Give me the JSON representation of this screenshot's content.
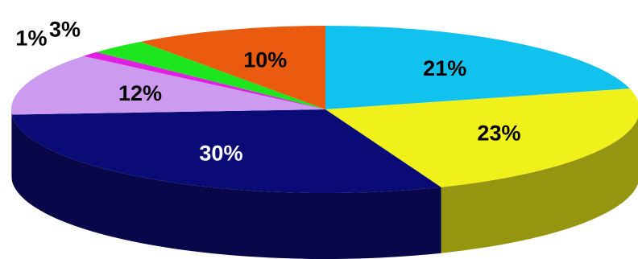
{
  "chart_data": {
    "type": "pie",
    "style": "3d",
    "title": "",
    "slices": [
      {
        "label": "21%",
        "value": 21,
        "color": "#11c1ee"
      },
      {
        "label": "23%",
        "value": 23,
        "color": "#f0f01a"
      },
      {
        "label": "30%",
        "value": 30,
        "color": "#0b0b78"
      },
      {
        "label": "12%",
        "value": 12,
        "color": "#cc9aee"
      },
      {
        "label": "1%",
        "value": 1,
        "color": "#e21ee2"
      },
      {
        "label": "3%",
        "value": 3,
        "color": "#1ee61e"
      },
      {
        "label": "10%",
        "value": 10,
        "color": "#ea5b10"
      }
    ],
    "legend": "none",
    "data_labels": "on-slice"
  }
}
